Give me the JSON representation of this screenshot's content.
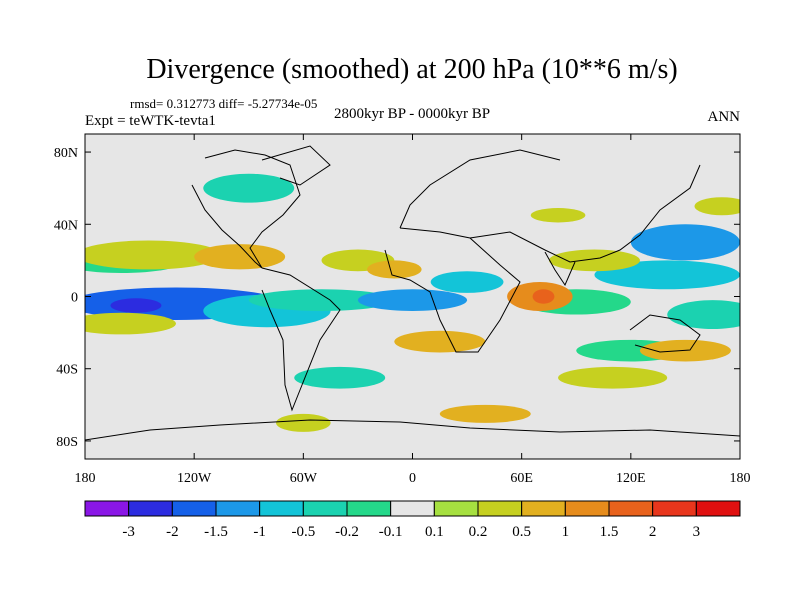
{
  "chart_data": {
    "type": "heatmap",
    "subtype": "filled-contour-map",
    "title": "Divergence (smoothed) at 200 hPa (10**6 m/s)",
    "stats_text": "rmsd= 0.312773 diff= -5.27734e-05",
    "experiment_text": "Expt = teWTK-tevta1",
    "period_text": "2800kyr BP - 0000kyr BP",
    "season_text": "ANN",
    "x_axis": {
      "range": [
        -180,
        180
      ],
      "ticks": [
        -180,
        -120,
        -60,
        0,
        60,
        120,
        180
      ],
      "tick_labels": [
        "180",
        "120W",
        "60W",
        "0",
        "60E",
        "120E",
        "180"
      ]
    },
    "y_axis": {
      "range": [
        -90,
        90
      ],
      "ticks": [
        80,
        40,
        0,
        -40,
        -80
      ],
      "tick_labels": [
        "80N",
        "40N",
        "0",
        "40S",
        "80S"
      ]
    },
    "colorbar": {
      "levels": [
        "-3",
        "-2",
        "-1.5",
        "-1",
        "-0.5",
        "-0.2",
        "-0.1",
        "0.1",
        "0.2",
        "0.5",
        "1",
        "1.5",
        "2",
        "3"
      ],
      "colors": [
        "#8a16e6",
        "#2c2ce0",
        "#1560e8",
        "#1c98e8",
        "#13c4d8",
        "#1bd2b0",
        "#24d88a",
        "#e6e6e6",
        "#a6e040",
        "#c6d020",
        "#e2b020",
        "#e68c1c",
        "#e8621c",
        "#e8361c",
        "#e01010"
      ]
    },
    "blobs": [
      {
        "lon": -130,
        "lat": -4,
        "rx": 60,
        "ry": 9,
        "level": 2
      },
      {
        "lon": -152,
        "lat": -5,
        "rx": 14,
        "ry": 4,
        "level": 1
      },
      {
        "lon": -80,
        "lat": -8,
        "rx": 35,
        "ry": 9,
        "level": 4
      },
      {
        "lon": -50,
        "lat": -2,
        "rx": 40,
        "ry": 6,
        "level": 5
      },
      {
        "lon": 0,
        "lat": -2,
        "rx": 30,
        "ry": 6,
        "level": 3
      },
      {
        "lon": 30,
        "lat": 8,
        "rx": 20,
        "ry": 6,
        "level": 4
      },
      {
        "lon": 90,
        "lat": -3,
        "rx": 30,
        "ry": 7,
        "level": 6
      },
      {
        "lon": 140,
        "lat": 12,
        "rx": 40,
        "ry": 8,
        "level": 4
      },
      {
        "lon": 150,
        "lat": 30,
        "rx": 30,
        "ry": 10,
        "level": 3
      },
      {
        "lon": 165,
        "lat": -10,
        "rx": 25,
        "ry": 8,
        "level": 5
      },
      {
        "lon": -160,
        "lat": 20,
        "rx": 35,
        "ry": 7,
        "level": 6
      },
      {
        "lon": -90,
        "lat": 60,
        "rx": 25,
        "ry": 8,
        "level": 5
      },
      {
        "lon": -40,
        "lat": -45,
        "rx": 25,
        "ry": 6,
        "level": 5
      },
      {
        "lon": 120,
        "lat": -30,
        "rx": 30,
        "ry": 6,
        "level": 6
      },
      {
        "lon": -160,
        "lat": -15,
        "rx": 30,
        "ry": 6,
        "level": 9
      },
      {
        "lon": -145,
        "lat": 23,
        "rx": 40,
        "ry": 8,
        "level": 9
      },
      {
        "lon": -95,
        "lat": 22,
        "rx": 25,
        "ry": 7,
        "level": 10
      },
      {
        "lon": -30,
        "lat": 20,
        "rx": 20,
        "ry": 6,
        "level": 9
      },
      {
        "lon": -10,
        "lat": 15,
        "rx": 15,
        "ry": 5,
        "level": 10
      },
      {
        "lon": 15,
        "lat": -25,
        "rx": 25,
        "ry": 6,
        "level": 10
      },
      {
        "lon": 70,
        "lat": 0,
        "rx": 18,
        "ry": 8,
        "level": 11
      },
      {
        "lon": 72,
        "lat": 0,
        "rx": 6,
        "ry": 4,
        "level": 12
      },
      {
        "lon": 100,
        "lat": 20,
        "rx": 25,
        "ry": 6,
        "level": 9
      },
      {
        "lon": 150,
        "lat": -30,
        "rx": 25,
        "ry": 6,
        "level": 10
      },
      {
        "lon": 110,
        "lat": -45,
        "rx": 30,
        "ry": 6,
        "level": 9
      },
      {
        "lon": 80,
        "lat": 45,
        "rx": 15,
        "ry": 4,
        "level": 9
      },
      {
        "lon": -60,
        "lat": -70,
        "rx": 15,
        "ry": 5,
        "level": 9
      },
      {
        "lon": 40,
        "lat": -65,
        "rx": 25,
        "ry": 5,
        "level": 10
      },
      {
        "lon": 170,
        "lat": 50,
        "rx": 15,
        "ry": 5,
        "level": 9
      }
    ]
  }
}
